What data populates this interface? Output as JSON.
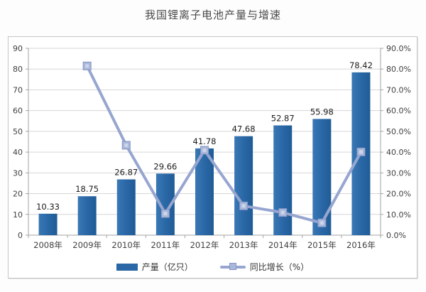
{
  "chart_data": {
    "type": "combo-bar-line",
    "title": "我国锂离子电池产量与增速",
    "categories": [
      "2008年",
      "2009年",
      "2010年",
      "2011年",
      "2012年",
      "2013年",
      "2014年",
      "2015年",
      "2016年"
    ],
    "series": [
      {
        "name": "产量（亿只）",
        "type": "bar",
        "axis": "left",
        "values": [
          10.33,
          18.75,
          26.87,
          29.66,
          41.78,
          47.68,
          52.87,
          55.98,
          78.42
        ],
        "data_labels": [
          "10.33",
          "18.75",
          "26.87",
          "29.66",
          "41.78",
          "47.68",
          "52.87",
          "55.98",
          "78.42"
        ]
      },
      {
        "name": "同比增长（%）",
        "type": "line",
        "axis": "right",
        "values": [
          null,
          81.5,
          43.3,
          10.4,
          40.9,
          14.1,
          10.9,
          5.9,
          40.1
        ]
      }
    ],
    "left_axis": {
      "min": 0,
      "max": 90,
      "step": 10,
      "ticks": [
        "0",
        "10",
        "20",
        "30",
        "40",
        "50",
        "60",
        "70",
        "80",
        "90"
      ]
    },
    "right_axis": {
      "min": 0,
      "max": 90,
      "step": 10,
      "ticks": [
        "0.0%",
        "10.0%",
        "20.0%",
        "30.0%",
        "40.0%",
        "50.0%",
        "60.0%",
        "70.0%",
        "80.0%",
        "90.0%"
      ]
    },
    "legend": {
      "position": "bottom",
      "entries": [
        "产量（亿只）",
        "同比增长（%）"
      ]
    },
    "grid": "horizontal",
    "colors": {
      "bar_light": "#3A78B5",
      "bar": "#2A67A6",
      "bar_dark": "#1F5C96",
      "line": "#97A6D0",
      "marker_fill": "#A9B7D9",
      "marker_inner": "#CCD5EA",
      "marker_border": "#8495C5",
      "grid_line": "#d6d6d6",
      "axis_line": "#a3a3a3",
      "tick_text": "#3f3f3f",
      "value_label": "#1c1c1c",
      "title_text": "#4a4a4a"
    }
  }
}
